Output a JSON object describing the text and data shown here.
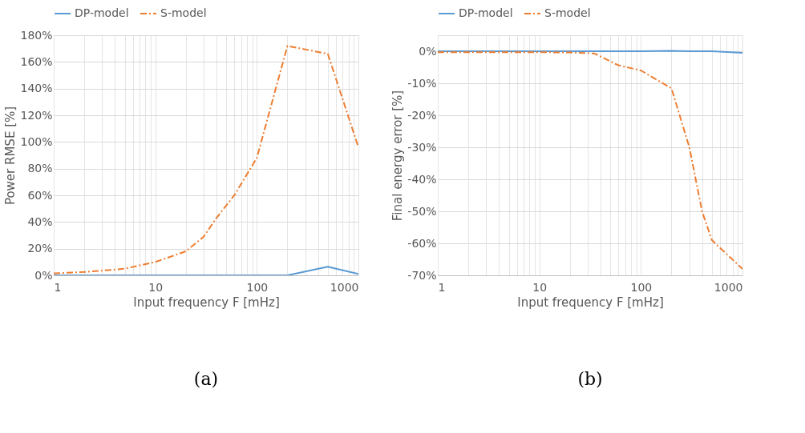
{
  "chart_data": [
    {
      "type": "line",
      "xlabel": "Input frequency F [mHz]",
      "ylabel": "Power RMSE [%]",
      "annotations": [
        "(a)"
      ],
      "log": "x",
      "grid": true,
      "legend": "top",
      "xlim": [
        1,
        1000
      ],
      "xticks": [
        1,
        {
          "value": 2,
          "label": null
        },
        {
          "value": 3,
          "label": null
        },
        {
          "value": 4,
          "label": null
        },
        {
          "value": 5,
          "label": null
        },
        {
          "value": 6,
          "label": null
        },
        {
          "value": 7,
          "label": null
        },
        {
          "value": 8,
          "label": null
        },
        {
          "value": 9,
          "label": null
        },
        10,
        {
          "value": 20,
          "label": null
        },
        {
          "value": 30,
          "label": null
        },
        {
          "value": 40,
          "label": null
        },
        {
          "value": 50,
          "label": null
        },
        {
          "value": 60,
          "label": null
        },
        {
          "value": 70,
          "label": null
        },
        {
          "value": 80,
          "label": null
        },
        {
          "value": 90,
          "label": null
        },
        100,
        {
          "value": 200,
          "label": null
        },
        {
          "value": 300,
          "label": null
        },
        {
          "value": 400,
          "label": null
        },
        {
          "value": 500,
          "label": null
        },
        {
          "value": 600,
          "label": null
        },
        {
          "value": 700,
          "label": null
        },
        {
          "value": 800,
          "label": null
        },
        {
          "value": 900,
          "label": null
        },
        1000
      ],
      "ylim": [
        0,
        180
      ],
      "yticks": [
        {
          "value": 0,
          "label": "0%"
        },
        {
          "value": 20,
          "label": "20%"
        },
        {
          "value": 40,
          "label": "40%"
        },
        {
          "value": 60,
          "label": "60%"
        },
        {
          "value": 80,
          "label": "80%"
        },
        {
          "value": 100,
          "label": "100%"
        },
        {
          "value": 120,
          "label": "120%"
        },
        {
          "value": 140,
          "label": "140%"
        },
        {
          "value": 160,
          "label": "160%"
        },
        {
          "value": 180,
          "label": "180%"
        }
      ],
      "x": [
        1,
        2,
        3,
        5,
        10,
        20,
        30,
        40,
        60,
        100,
        200,
        500,
        1000
      ],
      "series": [
        {
          "name": "DP-model",
          "color": "#5b9bd5",
          "line_style": "solid",
          "values": [
            0,
            0,
            0,
            0,
            0,
            0,
            0,
            0,
            0,
            0,
            0,
            6.5,
            1
          ]
        },
        {
          "name": "S-model",
          "color": "#ed7d31",
          "line_style": "dashed",
          "values": [
            1.5,
            2.5,
            3.5,
            5,
            10,
            18,
            29,
            43,
            60,
            88,
            172,
            166,
            96
          ]
        }
      ]
    },
    {
      "type": "line",
      "xlabel": "Input frequency F [mHz]",
      "ylabel": "Final energy error [%]",
      "annotations": [
        "(b)"
      ],
      "log": "x",
      "grid": true,
      "legend": "top",
      "xlim": [
        1,
        1000
      ],
      "xticks": [
        1,
        {
          "value": 2,
          "label": null
        },
        {
          "value": 3,
          "label": null
        },
        {
          "value": 4,
          "label": null
        },
        {
          "value": 5,
          "label": null
        },
        {
          "value": 6,
          "label": null
        },
        {
          "value": 7,
          "label": null
        },
        {
          "value": 8,
          "label": null
        },
        {
          "value": 9,
          "label": null
        },
        10,
        {
          "value": 20,
          "label": null
        },
        {
          "value": 30,
          "label": null
        },
        {
          "value": 40,
          "label": null
        },
        {
          "value": 50,
          "label": null
        },
        {
          "value": 60,
          "label": null
        },
        {
          "value": 70,
          "label": null
        },
        {
          "value": 80,
          "label": null
        },
        {
          "value": 90,
          "label": null
        },
        100,
        {
          "value": 200,
          "label": null
        },
        {
          "value": 300,
          "label": null
        },
        {
          "value": 400,
          "label": null
        },
        {
          "value": 500,
          "label": null
        },
        {
          "value": 600,
          "label": null
        },
        {
          "value": 700,
          "label": null
        },
        {
          "value": 800,
          "label": null
        },
        {
          "value": 900,
          "label": null
        },
        1000
      ],
      "ylim": [
        -70,
        5
      ],
      "yticks": [
        {
          "value": 0,
          "label": "0%"
        },
        {
          "value": -10,
          "label": "-10%"
        },
        {
          "value": -20,
          "label": "-20%"
        },
        {
          "value": -30,
          "label": "-30%"
        },
        {
          "value": -40,
          "label": "-40%"
        },
        {
          "value": -50,
          "label": "-50%"
        },
        {
          "value": -60,
          "label": "-60%"
        },
        {
          "value": -70,
          "label": "-70%"
        }
      ],
      "x": [
        1,
        2,
        5,
        10,
        20,
        35,
        60,
        100,
        200,
        300,
        400,
        500,
        1000
      ],
      "series": [
        {
          "name": "DP-model",
          "color": "#5b9bd5",
          "line_style": "solid",
          "values": [
            0,
            0,
            0,
            0,
            0,
            0,
            0,
            0,
            0.1,
            0,
            0,
            0,
            -0.5
          ]
        },
        {
          "name": "S-model",
          "color": "#ed7d31",
          "line_style": "dashed",
          "values": [
            -0.3,
            -0.3,
            -0.3,
            -0.3,
            -0.4,
            -0.7,
            -4.4,
            -6,
            -11.6,
            -30,
            -50,
            -59,
            -68
          ]
        }
      ]
    }
  ]
}
